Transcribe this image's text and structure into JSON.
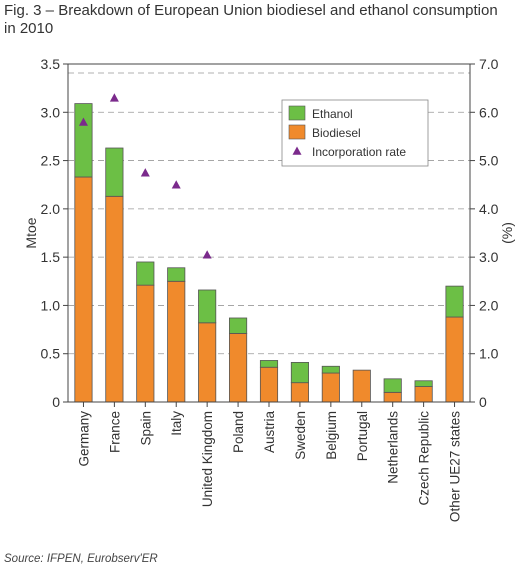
{
  "figure": {
    "title": "Fig. 3 – Breakdown of European Union biodiesel and ethanol consumption in 2010",
    "source": "Source: IFPEN, Eurobserv'ER"
  },
  "colors": {
    "ethanol": "#6cbf45",
    "biodiesel": "#f08a2c",
    "incorporation": "#7b2a8c",
    "grid": "#999999",
    "axis": "#444444"
  },
  "chart_data": {
    "type": "bar",
    "stacked": true,
    "title": "Fig. 3 – Breakdown of European Union biodiesel and ethanol consumption in 2010",
    "ylabel": "Mtoe",
    "ylabel_right": "(%)",
    "ylim": [
      0,
      3.5
    ],
    "ylim_right": [
      0,
      7.0
    ],
    "yticks": [
      "3.5",
      "3.0",
      "2.5",
      "2.0",
      "1.5",
      "1.0",
      "0.5",
      "0"
    ],
    "yticks_right": [
      "7.0",
      "6.0",
      "5.0",
      "4.0",
      "3.0",
      "2.0",
      "1.0",
      "0"
    ],
    "grid": "dashed horizontal",
    "legend_position": "top-right",
    "categories": [
      "Germany",
      "France",
      "Spain",
      "Italy",
      "United Kingdom",
      "Poland",
      "Austria",
      "Sweden",
      "Belgium",
      "Portugal",
      "Netherlands",
      "Czech Republic",
      "Other UE27 states"
    ],
    "series": [
      {
        "name": "Biodiesel",
        "axis": "left",
        "values": [
          2.33,
          2.13,
          1.21,
          1.25,
          0.82,
          0.71,
          0.36,
          0.2,
          0.3,
          0.33,
          0.1,
          0.16,
          0.88
        ]
      },
      {
        "name": "Ethanol",
        "axis": "left",
        "values": [
          0.76,
          0.5,
          0.24,
          0.14,
          0.34,
          0.16,
          0.07,
          0.21,
          0.07,
          0,
          0.14,
          0.06,
          0.32
        ]
      },
      {
        "name": "Incorporation rate",
        "axis": "right",
        "type": "marker",
        "values": [
          5.8,
          6.3,
          4.75,
          4.5,
          3.05,
          null,
          null,
          null,
          null,
          null,
          null,
          null,
          null
        ]
      }
    ],
    "legend": [
      "Ethanol",
      "Biodiesel",
      "Incorporation rate"
    ]
  }
}
